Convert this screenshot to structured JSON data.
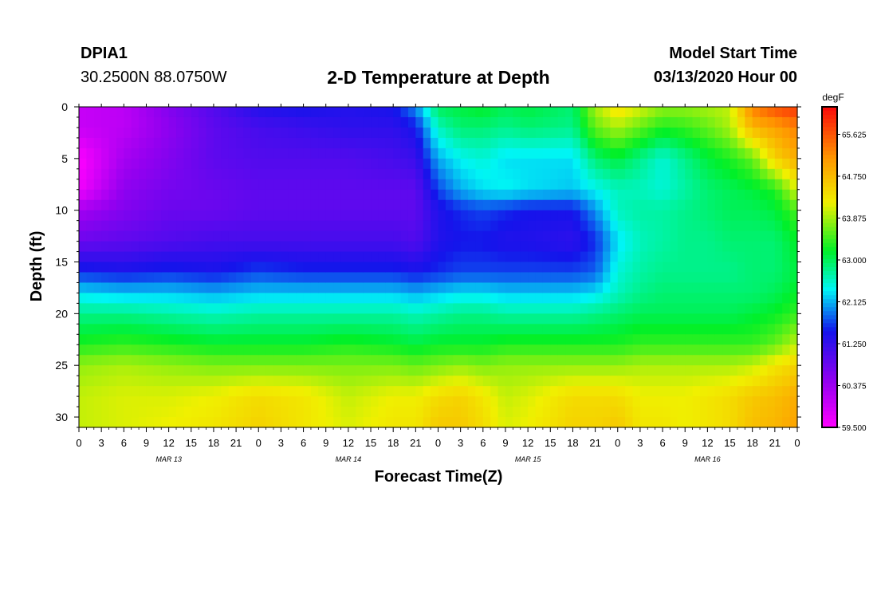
{
  "header": {
    "station_id": "DPIA1",
    "coords": "30.2500N 88.0750W",
    "title": "2-D Temperature at Depth",
    "model_label": "Model Start Time",
    "model_time": "03/13/2020 Hour 00"
  },
  "chart_data": {
    "type": "heatmap",
    "title": "2-D Temperature at Depth",
    "xlabel": "Forecast Time(Z)",
    "ylabel": "Depth (ft)",
    "x_hours": [
      0,
      3,
      6,
      9,
      12,
      15,
      18,
      21,
      24,
      27,
      30,
      33,
      36,
      39,
      42,
      45,
      48,
      51,
      54,
      57,
      60,
      63,
      66,
      69,
      72,
      75,
      78,
      81,
      84,
      87,
      90,
      93,
      96
    ],
    "x_tick_labels": [
      "0",
      "3",
      "6",
      "9",
      "12",
      "15",
      "18",
      "21",
      "0",
      "3",
      "6",
      "9",
      "12",
      "15",
      "18",
      "21",
      "0",
      "3",
      "6",
      "9",
      "12",
      "15",
      "18",
      "21",
      "0",
      "3",
      "6",
      "9",
      "12",
      "15",
      "18",
      "21",
      "0"
    ],
    "x_day_labels": [
      {
        "label": "MAR 13",
        "hour": 12
      },
      {
        "label": "MAR 14",
        "hour": 36
      },
      {
        "label": "MAR 15",
        "hour": 60
      },
      {
        "label": "MAR 16",
        "hour": 84
      }
    ],
    "y_ticks": [
      0,
      5,
      10,
      15,
      20,
      25,
      30
    ],
    "ylim": [
      31,
      0
    ],
    "xlim": [
      0,
      96
    ],
    "colorbar": {
      "unit": "degF",
      "min": 59.5,
      "max": 66.2,
      "tick_values": [
        65.625,
        64.75,
        63.875,
        63.0,
        62.125,
        61.25,
        60.375,
        59.5
      ],
      "tick_labels": [
        "65.625",
        "64.750",
        "63.875",
        "63.000",
        "62.125",
        "61.250",
        "60.375",
        "59.500"
      ]
    },
    "profile_times": [
      0,
      6,
      12,
      18,
      24,
      30,
      36,
      42,
      45,
      48,
      51,
      54,
      57,
      60,
      66,
      69,
      72,
      75,
      78,
      81,
      84,
      87,
      90,
      93,
      96
    ],
    "depths": [
      0,
      2,
      5,
      8,
      10,
      13,
      16,
      18,
      20,
      23,
      25,
      28,
      31
    ],
    "profiles": [
      [
        60.0,
        60.0,
        59.5,
        59.6,
        60.3,
        60.8,
        61.6,
        62.3,
        62.8,
        63.3,
        63.8,
        64.0,
        64.0
      ],
      [
        60.1,
        60.1,
        60.3,
        60.5,
        60.6,
        60.9,
        61.5,
        62.2,
        62.8,
        63.4,
        63.9,
        64.1,
        64.1
      ],
      [
        60.6,
        60.5,
        60.6,
        60.7,
        60.8,
        61.0,
        61.6,
        62.2,
        62.7,
        63.3,
        63.8,
        64.1,
        64.2
      ],
      [
        61.0,
        60.9,
        60.9,
        60.8,
        60.8,
        61.1,
        61.5,
        62.1,
        62.6,
        63.2,
        63.7,
        64.2,
        64.3
      ],
      [
        61.4,
        61.1,
        61.0,
        60.9,
        60.9,
        61.1,
        61.7,
        62.2,
        62.7,
        63.2,
        63.7,
        64.4,
        64.5
      ],
      [
        61.5,
        61.2,
        61.0,
        60.9,
        60.9,
        61.1,
        61.6,
        62.2,
        62.7,
        63.2,
        63.7,
        64.3,
        64.3
      ],
      [
        61.4,
        61.3,
        61.0,
        60.9,
        60.9,
        61.1,
        61.6,
        62.2,
        62.7,
        63.3,
        63.7,
        64.0,
        64.1
      ],
      [
        61.5,
        61.3,
        61.1,
        60.9,
        60.9,
        61.1,
        61.6,
        62.2,
        62.7,
        63.2,
        63.7,
        64.2,
        64.3
      ],
      [
        62.0,
        61.5,
        61.2,
        60.9,
        60.9,
        61.0,
        61.5,
        62.1,
        62.6,
        63.1,
        63.6,
        64.2,
        64.3
      ],
      [
        63.0,
        62.6,
        62.1,
        61.7,
        61.4,
        61.4,
        61.6,
        62.2,
        62.7,
        63.2,
        63.7,
        64.4,
        64.6
      ],
      [
        63.1,
        62.9,
        62.4,
        62.1,
        61.6,
        61.5,
        61.7,
        62.3,
        62.8,
        63.2,
        63.8,
        64.5,
        64.6
      ],
      [
        63.2,
        62.9,
        62.5,
        62.3,
        61.7,
        61.5,
        61.7,
        62.3,
        62.8,
        63.2,
        63.7,
        64.3,
        64.4
      ],
      [
        63.0,
        62.8,
        62.3,
        62.4,
        61.6,
        61.4,
        61.7,
        62.2,
        62.7,
        63.3,
        63.8,
        64.0,
        64.1
      ],
      [
        63.1,
        62.9,
        62.3,
        62.3,
        61.5,
        61.4,
        61.7,
        62.2,
        62.7,
        63.3,
        63.8,
        64.1,
        64.2
      ],
      [
        62.9,
        62.8,
        62.3,
        62.2,
        61.5,
        61.3,
        61.7,
        62.2,
        62.7,
        63.3,
        63.8,
        64.4,
        64.5
      ],
      [
        63.9,
        63.6,
        62.9,
        62.4,
        62.0,
        61.6,
        61.8,
        62.3,
        62.8,
        63.3,
        63.8,
        64.4,
        64.5
      ],
      [
        64.4,
        63.9,
        63.1,
        62.6,
        62.6,
        62.3,
        62.5,
        62.6,
        62.9,
        63.3,
        63.8,
        64.4,
        64.6
      ],
      [
        64.1,
        63.6,
        62.8,
        62.6,
        62.7,
        62.6,
        62.7,
        62.8,
        63.0,
        63.4,
        63.9,
        64.2,
        64.3
      ],
      [
        63.8,
        63.3,
        62.5,
        62.5,
        62.7,
        62.7,
        62.8,
        62.9,
        63.0,
        63.4,
        63.9,
        64.2,
        64.3
      ],
      [
        63.8,
        63.4,
        62.8,
        62.7,
        62.8,
        62.8,
        62.8,
        62.9,
        63.0,
        63.4,
        63.9,
        64.2,
        64.2
      ],
      [
        63.9,
        63.6,
        63.1,
        62.9,
        62.9,
        62.8,
        62.8,
        62.9,
        63.0,
        63.4,
        63.9,
        64.3,
        64.3
      ],
      [
        64.0,
        63.9,
        63.3,
        63.0,
        63.0,
        62.9,
        62.8,
        62.9,
        63.0,
        63.4,
        63.9,
        64.4,
        64.4
      ],
      [
        65.3,
        64.8,
        63.6,
        63.1,
        63.0,
        62.9,
        62.9,
        62.9,
        63.1,
        63.4,
        64.0,
        64.6,
        64.7
      ],
      [
        65.7,
        65.0,
        64.5,
        63.3,
        63.1,
        62.9,
        62.9,
        63.0,
        63.2,
        63.6,
        64.3,
        64.7,
        64.8
      ],
      [
        65.9,
        65.3,
        64.9,
        64.1,
        63.5,
        63.2,
        63.1,
        63.2,
        63.4,
        64.0,
        64.5,
        64.9,
        65.0
      ]
    ]
  }
}
